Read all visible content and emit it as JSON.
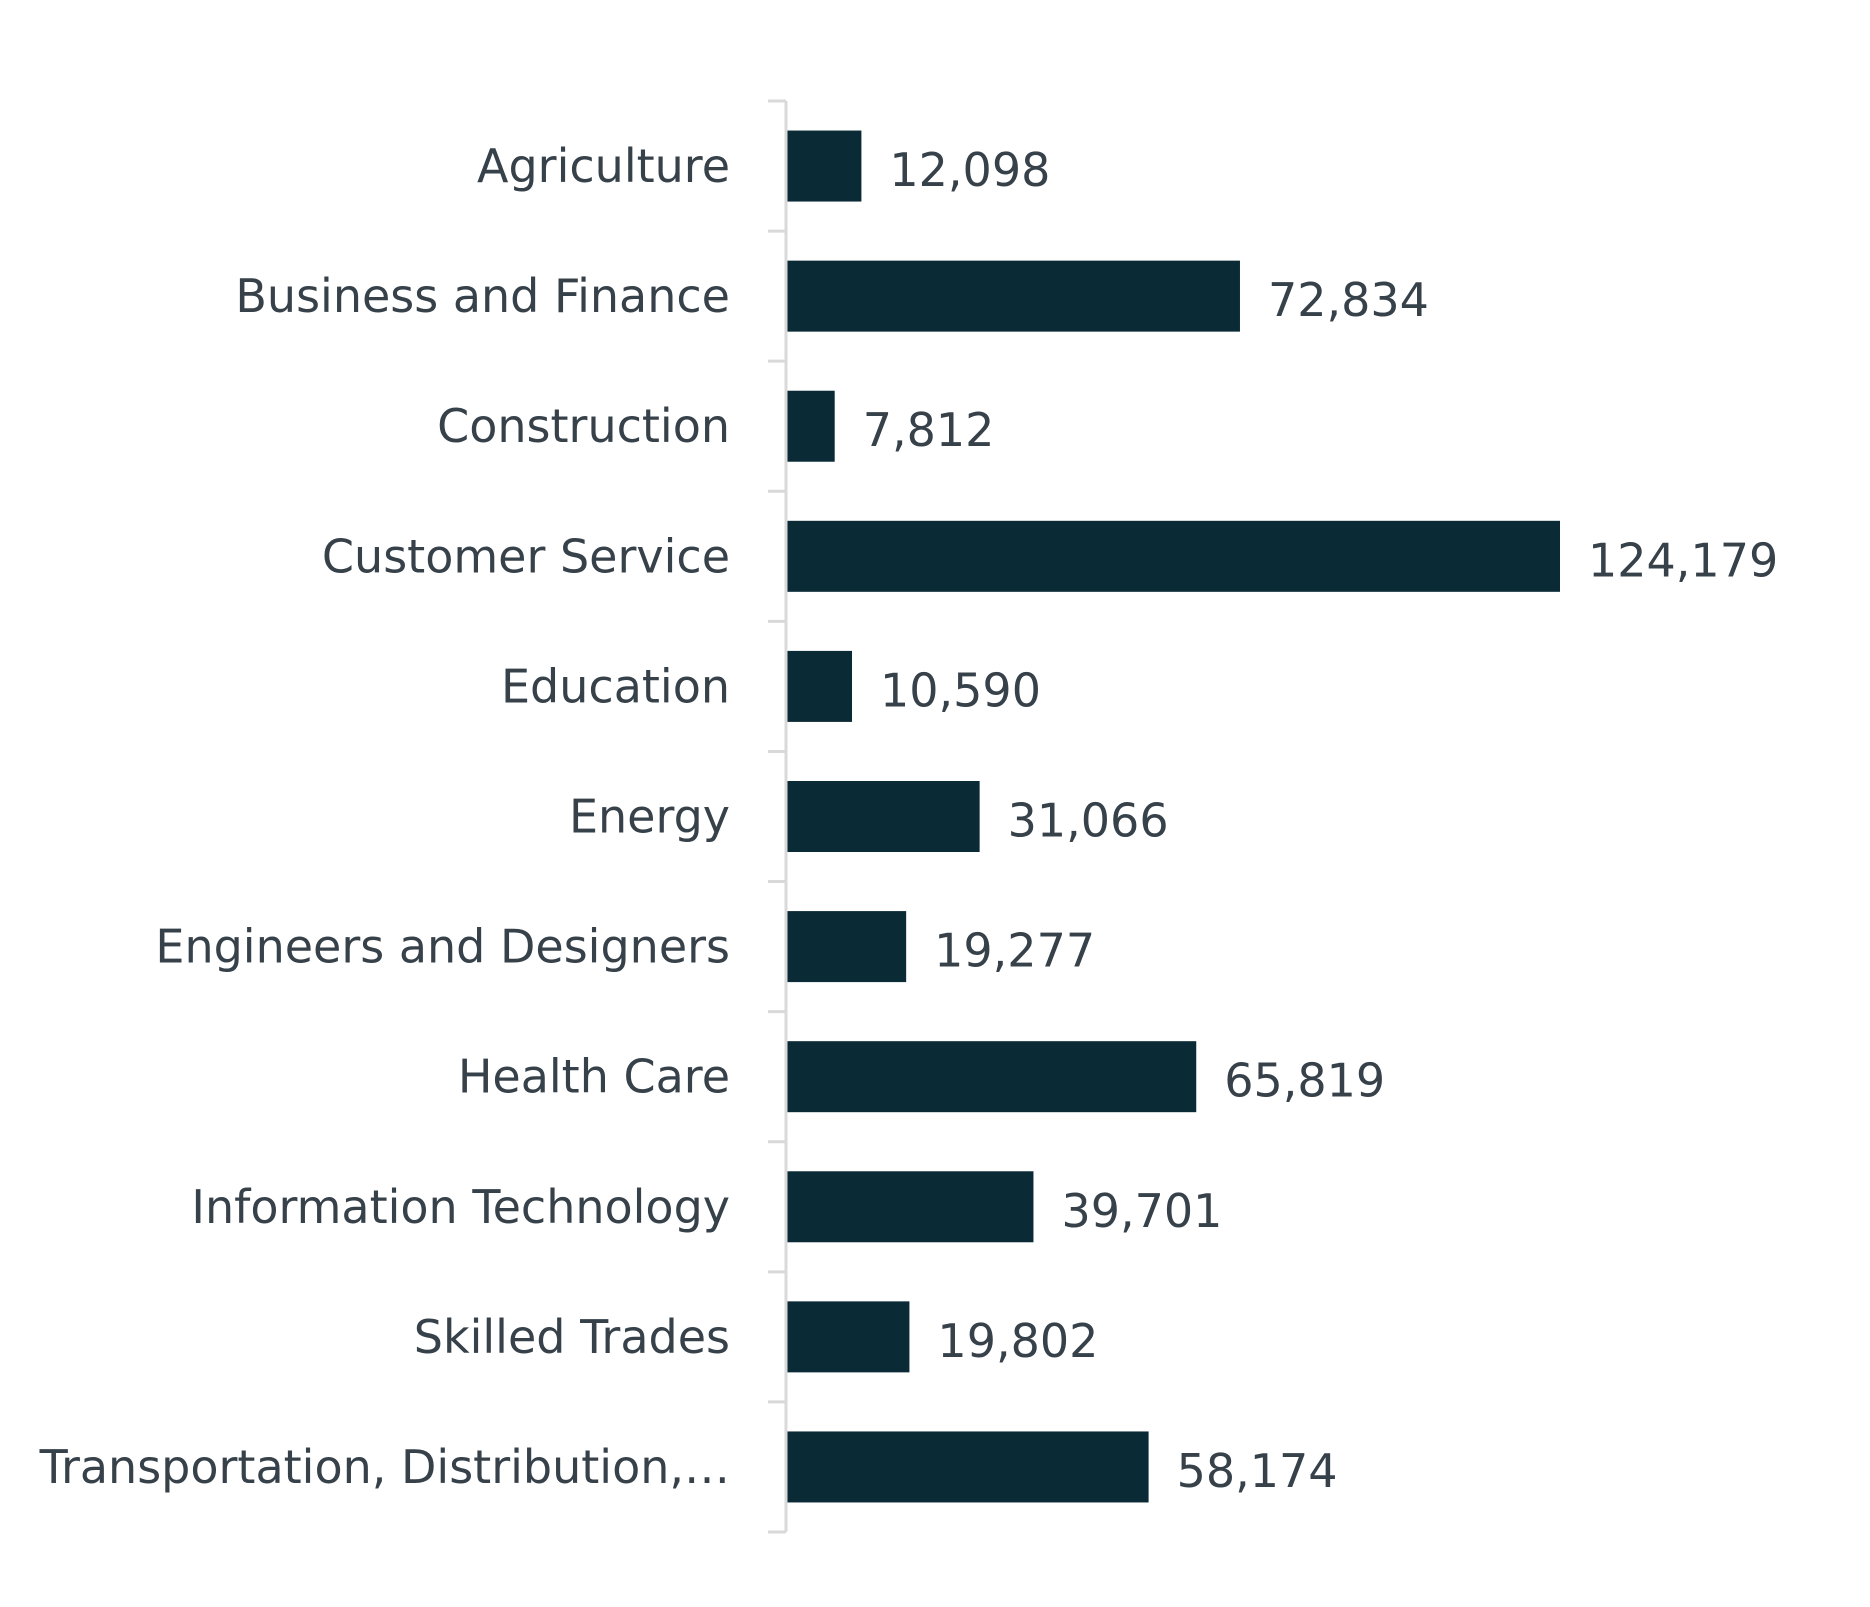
{
  "chart_data": {
    "type": "bar",
    "orientation": "horizontal",
    "title": "",
    "xlabel": "",
    "ylabel": "",
    "grid": false,
    "legend": "none",
    "categories": [
      "Agriculture",
      "Business and Finance",
      "Construction",
      "Customer Service",
      "Education",
      "Energy",
      "Engineers and Designers",
      "Health Care",
      "Information Technology",
      "Skilled Trades",
      "Transportation, Distribution,…"
    ],
    "values": [
      12098,
      72834,
      7812,
      124179,
      10590,
      31066,
      19277,
      65819,
      39701,
      19802,
      58174
    ],
    "value_labels": [
      "12,098",
      "72,834",
      "7,812",
      "124,179",
      "10,590",
      "31,066",
      "19,277",
      "65,819",
      "39,701",
      "19,802",
      "58,174"
    ],
    "xlim": [
      0,
      124179
    ],
    "bar_color": "#0a2a36",
    "axis_color": "#d9d9d9",
    "text_color": "#37414a"
  }
}
